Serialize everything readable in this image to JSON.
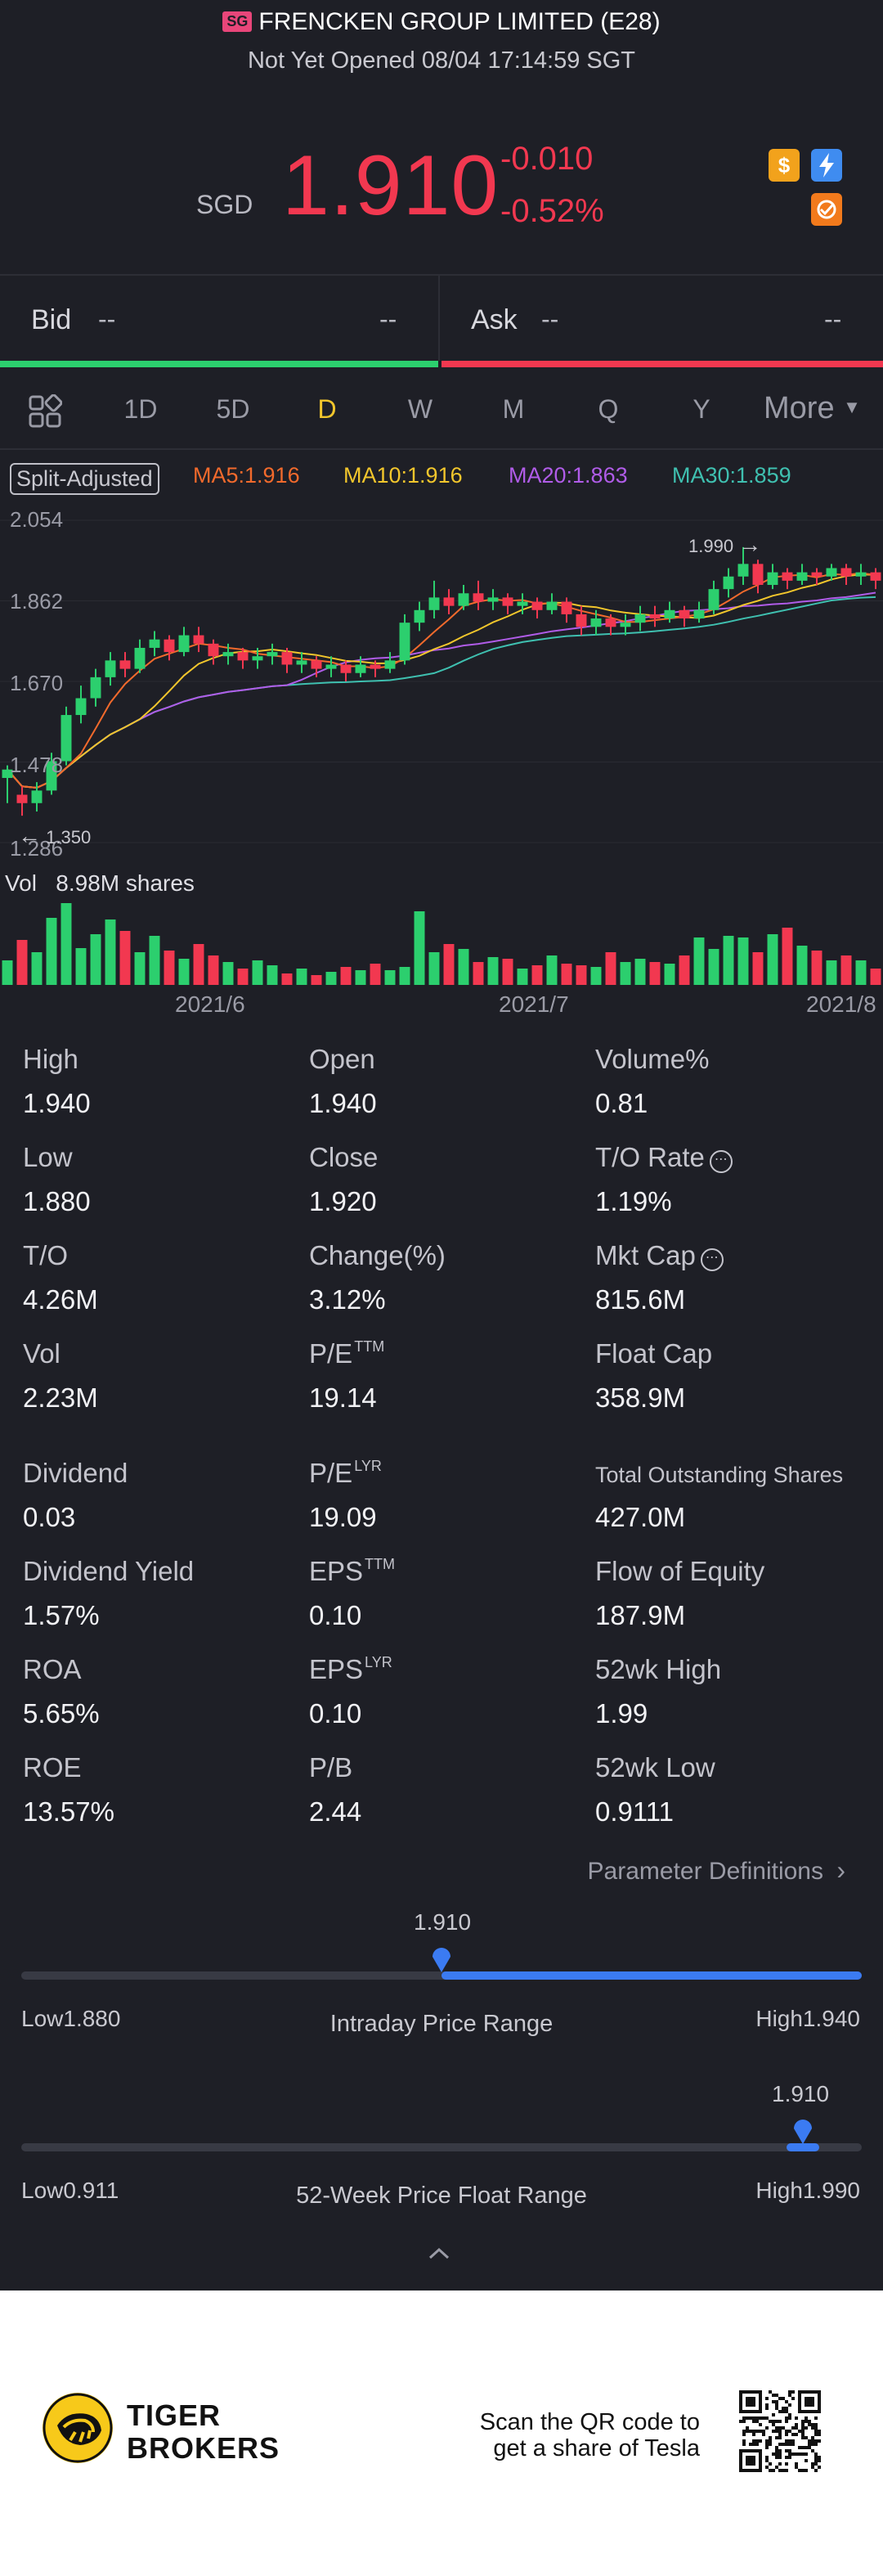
{
  "header": {
    "exchange_badge": "SG",
    "title": "FRENCKEN GROUP LIMITED (E28)",
    "status": "Not Yet Opened 08/04 17:14:59 SGT"
  },
  "quote": {
    "currency": "SGD",
    "price": "1.910",
    "change": "-0.010",
    "change_pct": "-0.52%"
  },
  "icons": {
    "dollar": "$",
    "colors": {
      "dollar": "#f2a21c",
      "flash": "#3f8cf0",
      "share": "#f27a1c"
    }
  },
  "bidask": {
    "bid_label": "Bid",
    "bid_price": "--",
    "bid_size": "--",
    "ask_label": "Ask",
    "ask_price": "--",
    "ask_size": "--"
  },
  "tabs": [
    "1D",
    "5D",
    "D",
    "W",
    "M",
    "Q",
    "Y"
  ],
  "active_tab": "D",
  "more_label": "More",
  "ma": {
    "split_label": "Split-Adjusted",
    "ma5": "MA5:1.916",
    "ma10": "MA10:1.916",
    "ma20": "MA20:1.863",
    "ma30": "MA30:1.859",
    "colors": {
      "ma5": "#f26a2c",
      "ma10": "#f2c62c",
      "ma20": "#b05ce8",
      "ma30": "#3fc0b0"
    }
  },
  "chart_data": {
    "type": "candlestick",
    "y_ticks": [
      "2.054",
      "1.862",
      "1.670",
      "1.478",
      "1.286"
    ],
    "ylim": [
      1.286,
      2.054
    ],
    "max_annotation": "1.990",
    "min_annotation": "1.350",
    "volume_label": "Vol",
    "volume_value": "8.98M shares",
    "x_ticks": [
      "2021/6",
      "2021/7",
      "2021/8"
    ],
    "colors": {
      "up": "#2ccf6e",
      "down": "#f23850"
    },
    "candles": [
      [
        1.44,
        1.46,
        1.38,
        1.47
      ],
      [
        1.4,
        1.38,
        1.35,
        1.42
      ],
      [
        1.38,
        1.41,
        1.36,
        1.43
      ],
      [
        1.41,
        1.48,
        1.4,
        1.5
      ],
      [
        1.48,
        1.59,
        1.47,
        1.61
      ],
      [
        1.59,
        1.63,
        1.57,
        1.66
      ],
      [
        1.63,
        1.68,
        1.61,
        1.7
      ],
      [
        1.68,
        1.72,
        1.66,
        1.74
      ],
      [
        1.72,
        1.7,
        1.68,
        1.74
      ],
      [
        1.7,
        1.75,
        1.69,
        1.77
      ],
      [
        1.75,
        1.77,
        1.73,
        1.79
      ],
      [
        1.77,
        1.74,
        1.72,
        1.78
      ],
      [
        1.74,
        1.78,
        1.73,
        1.8
      ],
      [
        1.78,
        1.76,
        1.74,
        1.8
      ],
      [
        1.76,
        1.73,
        1.71,
        1.77
      ],
      [
        1.73,
        1.74,
        1.71,
        1.76
      ],
      [
        1.74,
        1.72,
        1.7,
        1.75
      ],
      [
        1.72,
        1.73,
        1.7,
        1.75
      ],
      [
        1.73,
        1.74,
        1.71,
        1.76
      ],
      [
        1.74,
        1.71,
        1.69,
        1.75
      ],
      [
        1.71,
        1.72,
        1.69,
        1.74
      ],
      [
        1.72,
        1.7,
        1.68,
        1.73
      ],
      [
        1.7,
        1.71,
        1.68,
        1.73
      ],
      [
        1.71,
        1.69,
        1.67,
        1.72
      ],
      [
        1.69,
        1.71,
        1.68,
        1.73
      ],
      [
        1.71,
        1.7,
        1.68,
        1.72
      ],
      [
        1.7,
        1.72,
        1.69,
        1.74
      ],
      [
        1.72,
        1.81,
        1.71,
        1.83
      ],
      [
        1.81,
        1.84,
        1.79,
        1.86
      ],
      [
        1.84,
        1.87,
        1.82,
        1.91
      ],
      [
        1.87,
        1.85,
        1.83,
        1.89
      ],
      [
        1.85,
        1.88,
        1.84,
        1.9
      ],
      [
        1.88,
        1.86,
        1.84,
        1.91
      ],
      [
        1.86,
        1.87,
        1.84,
        1.89
      ],
      [
        1.87,
        1.85,
        1.83,
        1.88
      ],
      [
        1.85,
        1.86,
        1.83,
        1.88
      ],
      [
        1.86,
        1.84,
        1.82,
        1.87
      ],
      [
        1.84,
        1.86,
        1.83,
        1.88
      ],
      [
        1.86,
        1.83,
        1.81,
        1.87
      ],
      [
        1.83,
        1.8,
        1.78,
        1.85
      ],
      [
        1.8,
        1.82,
        1.78,
        1.84
      ],
      [
        1.82,
        1.8,
        1.78,
        1.83
      ],
      [
        1.8,
        1.81,
        1.78,
        1.83
      ],
      [
        1.81,
        1.83,
        1.79,
        1.85
      ],
      [
        1.83,
        1.82,
        1.8,
        1.85
      ],
      [
        1.82,
        1.84,
        1.81,
        1.86
      ],
      [
        1.84,
        1.82,
        1.8,
        1.85
      ],
      [
        1.82,
        1.84,
        1.81,
        1.86
      ],
      [
        1.84,
        1.89,
        1.83,
        1.91
      ],
      [
        1.89,
        1.92,
        1.87,
        1.94
      ],
      [
        1.92,
        1.95,
        1.9,
        1.99
      ],
      [
        1.95,
        1.9,
        1.88,
        1.96
      ],
      [
        1.9,
        1.93,
        1.89,
        1.95
      ],
      [
        1.93,
        1.91,
        1.89,
        1.94
      ],
      [
        1.91,
        1.93,
        1.9,
        1.95
      ],
      [
        1.93,
        1.92,
        1.9,
        1.94
      ],
      [
        1.92,
        1.94,
        1.91,
        1.95
      ],
      [
        1.94,
        1.92,
        1.9,
        1.95
      ],
      [
        1.92,
        1.93,
        1.9,
        1.95
      ],
      [
        1.93,
        1.91,
        1.89,
        1.94
      ]
    ],
    "volumes": [
      0.3,
      0.55,
      0.4,
      0.82,
      1.0,
      0.45,
      0.62,
      0.8,
      0.66,
      0.4,
      0.6,
      0.42,
      0.32,
      0.5,
      0.36,
      0.28,
      0.2,
      0.3,
      0.24,
      0.14,
      0.2,
      0.12,
      0.16,
      0.22,
      0.18,
      0.26,
      0.18,
      0.22,
      0.9,
      0.4,
      0.5,
      0.44,
      0.28,
      0.34,
      0.32,
      0.2,
      0.24,
      0.36,
      0.26,
      0.24,
      0.22,
      0.4,
      0.28,
      0.32,
      0.28,
      0.26,
      0.36,
      0.58,
      0.44,
      0.6,
      0.58,
      0.4,
      0.62,
      0.7,
      0.48,
      0.42,
      0.3,
      0.36,
      0.3,
      0.2
    ]
  },
  "stats": [
    {
      "label": "High",
      "value": "1.940"
    },
    {
      "label": "Open",
      "value": "1.940"
    },
    {
      "label": "Volume%",
      "value": "0.81"
    },
    {
      "label": "Low",
      "value": "1.880"
    },
    {
      "label": "Close",
      "value": "1.920"
    },
    {
      "label": "T/O Rate",
      "value": "1.19%"
    },
    {
      "label": "T/O",
      "value": "4.26M"
    },
    {
      "label": "Change(%)",
      "value": "3.12%"
    },
    {
      "label": "Mkt Cap",
      "value": "815.6M"
    },
    {
      "label": "Vol",
      "value": "2.23M"
    },
    {
      "label": "P/E",
      "sup": "TTM",
      "value": "19.14"
    },
    {
      "label": "Float Cap",
      "value": "358.9M"
    },
    {
      "label": "Dividend",
      "value": "0.03"
    },
    {
      "label": "P/E",
      "sup": "LYR",
      "value": "19.09"
    },
    {
      "label": "Total Outstanding Shares",
      "value": "427.0M"
    },
    {
      "label": "Dividend Yield",
      "value": "1.57%"
    },
    {
      "label": "EPS",
      "sup": "TTM",
      "value": "0.10"
    },
    {
      "label": "Flow of Equity",
      "value": "187.9M"
    },
    {
      "label": "ROA",
      "value": "5.65%"
    },
    {
      "label": "EPS",
      "sup": "LYR",
      "value": "0.10"
    },
    {
      "label": "52wk High",
      "value": "1.99"
    },
    {
      "label": "ROE",
      "value": "13.57%"
    },
    {
      "label": "P/B",
      "value": "2.44"
    },
    {
      "label": "52wk Low",
      "value": "0.9111"
    }
  ],
  "param_link": "Parameter Definitions",
  "intraday": {
    "price": "1.910",
    "low": "Low1.880",
    "high": "High1.940",
    "title": "Intraday Price Range",
    "position": 0.5
  },
  "week52": {
    "price": "1.910",
    "low": "Low0.911",
    "high": "High1.990",
    "title": "52-Week Price Float Range",
    "position": 0.93
  },
  "footer": {
    "brand_line1": "TIGER",
    "brand_line2": "BROKERS",
    "scan_line1": "Scan the QR code to",
    "scan_line2": "get a share of Tesla"
  }
}
